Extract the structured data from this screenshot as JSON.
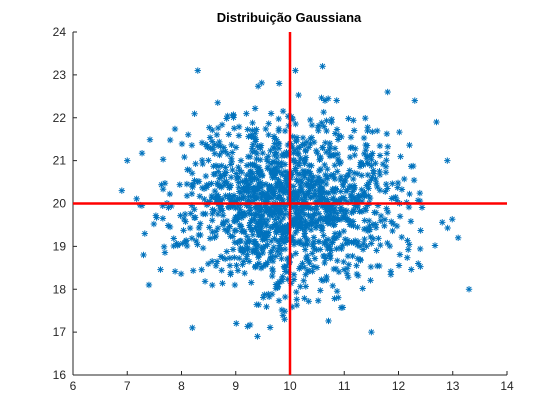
{
  "chart_data": {
    "type": "scatter",
    "title": "Distribuição Gaussiana",
    "xlabel": "",
    "ylabel": "",
    "xlim": [
      6,
      14
    ],
    "ylim": [
      16,
      24
    ],
    "xticks": [
      "6",
      "7",
      "8",
      "9",
      "10",
      "11",
      "12",
      "13",
      "14"
    ],
    "yticks": [
      "16",
      "17",
      "18",
      "19",
      "20",
      "21",
      "22",
      "23",
      "24"
    ],
    "grid": false,
    "legend": "none",
    "marker": "asterisk",
    "series_color": "#0072BD",
    "reference_lines": [
      {
        "orientation": "horizontal",
        "value": 20,
        "color": "#FF0000"
      },
      {
        "orientation": "vertical",
        "value": 10,
        "color": "#FF0000"
      }
    ],
    "distribution": {
      "mean_x": 10,
      "mean_y": 20,
      "std_x": 1.0,
      "std_y": 1.0,
      "n_points": 1500
    },
    "outliers": [
      {
        "x": 7.0,
        "y": 21.0
      },
      {
        "x": 8.3,
        "y": 23.1
      },
      {
        "x": 10.1,
        "y": 23.1
      },
      {
        "x": 9.8,
        "y": 22.8
      },
      {
        "x": 10.6,
        "y": 23.2
      },
      {
        "x": 13.3,
        "y": 18.0
      },
      {
        "x": 9.4,
        "y": 16.9
      },
      {
        "x": 8.2,
        "y": 17.1
      },
      {
        "x": 7.4,
        "y": 18.1
      },
      {
        "x": 7.3,
        "y": 18.8
      },
      {
        "x": 13.1,
        "y": 19.2
      },
      {
        "x": 12.7,
        "y": 21.9
      },
      {
        "x": 12.3,
        "y": 22.4
      },
      {
        "x": 11.5,
        "y": 17.0
      },
      {
        "x": 11.8,
        "y": 22.6
      },
      {
        "x": 6.9,
        "y": 20.3
      },
      {
        "x": 12.9,
        "y": 21.0
      },
      {
        "x": 9.9,
        "y": 17.3
      }
    ]
  }
}
